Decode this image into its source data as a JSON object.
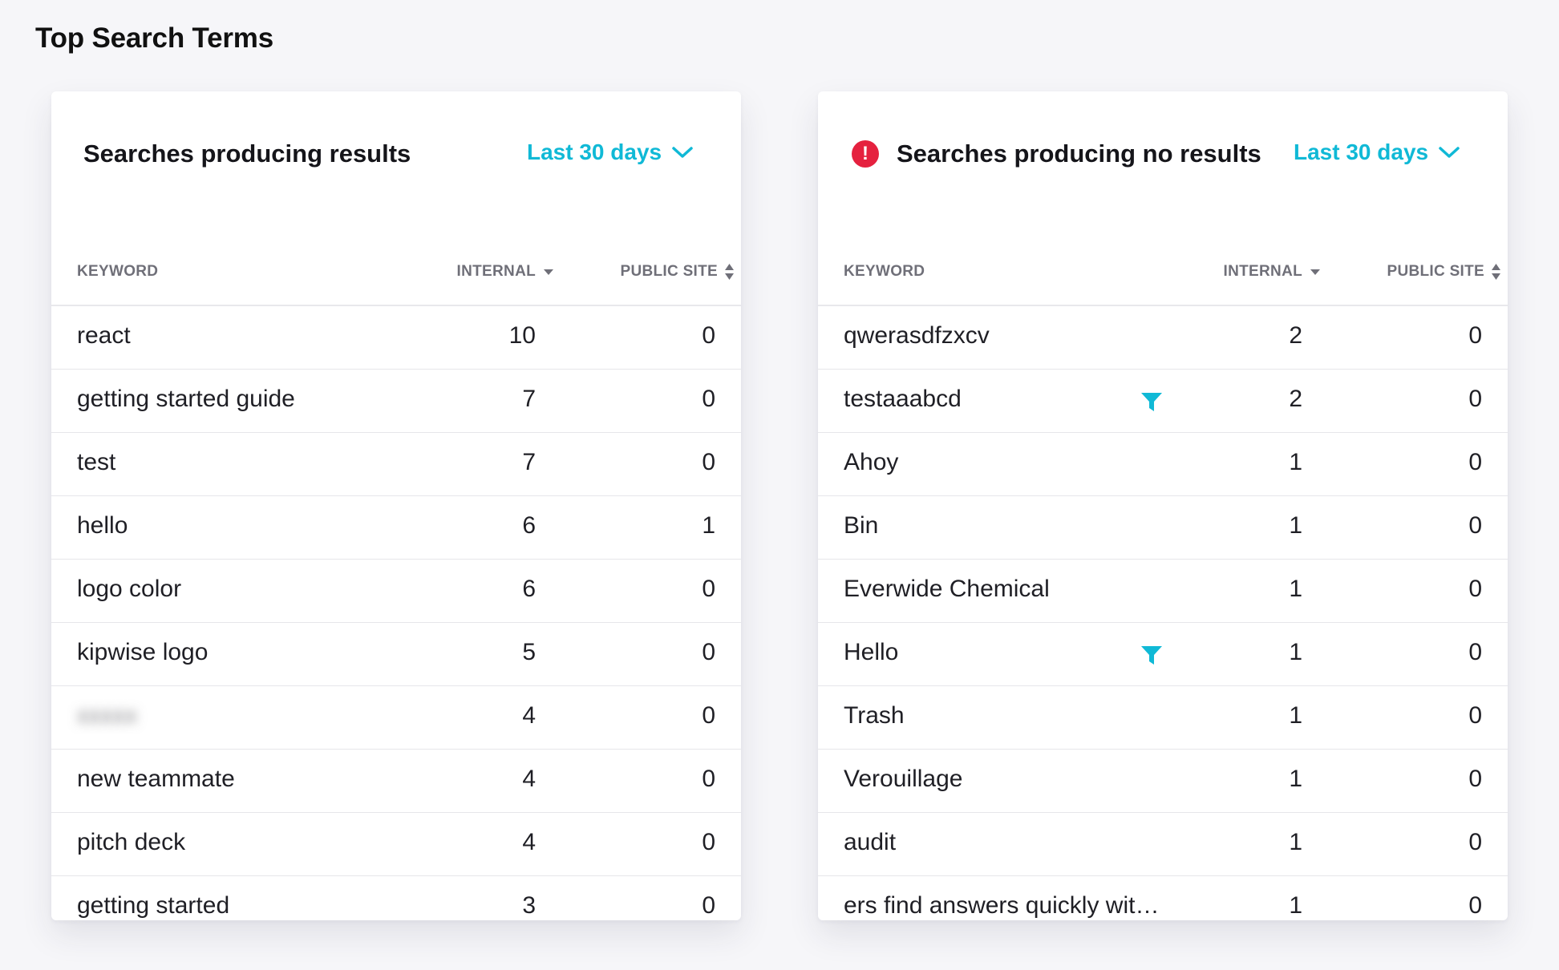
{
  "page_title": "Top Search Terms",
  "colors": {
    "accent": "#10b9d6",
    "alert": "#e5213f"
  },
  "results_card": {
    "title": "Searches producing results",
    "period": "Last 30 days",
    "columns": [
      "KEYWORD",
      "INTERNAL",
      "PUBLIC SITE"
    ],
    "rows": [
      {
        "keyword": "react",
        "internal": "10",
        "public": "0"
      },
      {
        "keyword": "getting started guide",
        "internal": "7",
        "public": "0"
      },
      {
        "keyword": "test",
        "internal": "7",
        "public": "0"
      },
      {
        "keyword": "hello",
        "internal": "6",
        "public": "1"
      },
      {
        "keyword": "logo color",
        "internal": "6",
        "public": "0"
      },
      {
        "keyword": "kipwise logo",
        "internal": "5",
        "public": "0"
      },
      {
        "keyword": "",
        "internal": "4",
        "public": "0",
        "blurred": true
      },
      {
        "keyword": "new teammate",
        "internal": "4",
        "public": "0"
      },
      {
        "keyword": "pitch deck",
        "internal": "4",
        "public": "0"
      },
      {
        "keyword": "getting started",
        "internal": "3",
        "public": "0"
      }
    ]
  },
  "no_results_card": {
    "title": "Searches producing no results",
    "period": "Last 30 days",
    "alert_icon": "exclamation-circle-icon",
    "alert_glyph": "!",
    "columns": [
      "KEYWORD",
      "INTERNAL",
      "PUBLIC SITE"
    ],
    "rows": [
      {
        "keyword": "qwerasdfzxcv",
        "internal": "2",
        "public": "0"
      },
      {
        "keyword": "testaaabcd",
        "internal": "2",
        "public": "0",
        "filter": true
      },
      {
        "keyword": "Ahoy",
        "internal": "1",
        "public": "0"
      },
      {
        "keyword": "Bin",
        "internal": "1",
        "public": "0"
      },
      {
        "keyword": "Everwide Chemical",
        "internal": "1",
        "public": "0"
      },
      {
        "keyword": "Hello",
        "internal": "1",
        "public": "0",
        "filter": true
      },
      {
        "keyword": "Trash",
        "internal": "1",
        "public": "0"
      },
      {
        "keyword": "Verouillage",
        "internal": "1",
        "public": "0"
      },
      {
        "keyword": "audit",
        "internal": "1",
        "public": "0"
      },
      {
        "keyword": "ers find answers quickly wit…",
        "internal": "1",
        "public": "0"
      }
    ]
  }
}
